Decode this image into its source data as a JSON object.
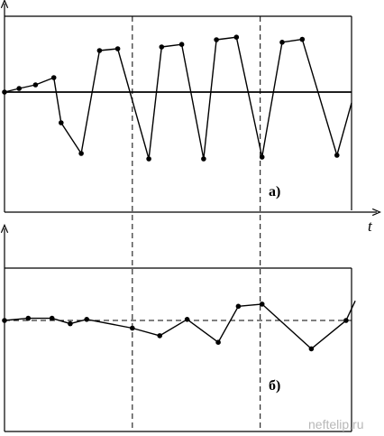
{
  "watermark": "neftelip.ru",
  "chart_data": [
    {
      "type": "line",
      "panel_label": "а)",
      "x_axis_label": "t",
      "y_axis_label": "",
      "grid": "dashed vertical lines at x = 7 and x = 14",
      "reference_line_y": 0,
      "xlim": [
        0,
        19
      ],
      "ylim": [
        -3,
        2.1
      ],
      "x": [
        0,
        0.8,
        1.7,
        2.7,
        3.1,
        4.2,
        5.2,
        6.2,
        7.9,
        8.6,
        9.7,
        10.9,
        11.6,
        12.7,
        14.1,
        15.2,
        16.3,
        18.2,
        19
      ],
      "values": [
        0,
        0.1,
        0.2,
        0.4,
        -0.85,
        -1.7,
        1.15,
        1.2,
        -1.85,
        1.25,
        1.32,
        -1.85,
        1.45,
        1.52,
        -1.8,
        1.38,
        1.46,
        -1.75,
        -0.3
      ]
    },
    {
      "type": "line",
      "panel_label": "б)",
      "y_axis_label": "",
      "grid": "dashed vertical lines at x = 7 and x = 14",
      "reference_line_y": 0,
      "reference_line_style": "dashed",
      "xlim": [
        0,
        19
      ],
      "ylim": [
        -3,
        2.4
      ],
      "x": [
        0,
        1.3,
        2.6,
        3.6,
        4.5,
        7,
        8.5,
        10,
        11.7,
        12.8,
        14.1,
        16.8,
        18.7,
        19.2
      ],
      "values": [
        0,
        0.1,
        0.1,
        -0.15,
        0.05,
        -0.35,
        -0.7,
        0.05,
        -1,
        0.65,
        0.75,
        -1.3,
        0,
        0.9
      ]
    }
  ]
}
